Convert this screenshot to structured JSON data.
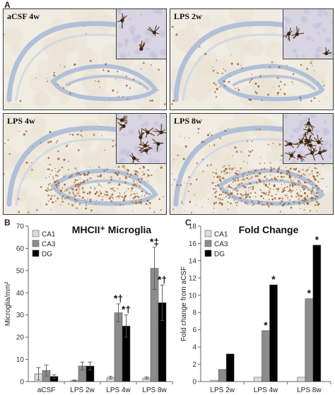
{
  "panels": {
    "a": {
      "letter": "A"
    },
    "b": {
      "letter": "B"
    },
    "c": {
      "letter": "C"
    }
  },
  "micrographs": [
    {
      "label": "aCSF 4w",
      "density": 0.05
    },
    {
      "label": "LPS 2w",
      "density": 0.12
    },
    {
      "label": "LPS 4w",
      "density": 0.7
    },
    {
      "label": "LPS 8w",
      "density": 1.0
    }
  ],
  "colors": {
    "CA1": "#dcdcdc",
    "CA3": "#8c8c8c",
    "DG": "#000000",
    "tissue": "#f1ece2",
    "hippocampus_stain": "#a9bbd9",
    "microglia_stain": "#a0602a"
  },
  "chart_data": [
    {
      "type": "bar",
      "title": "MHCII⁺ Microglia",
      "categories": [
        "aCSF",
        "LPS 2w",
        "LPS 4w",
        "LPS 8w"
      ],
      "series": [
        {
          "name": "CA1",
          "values": [
            3.5,
            0.4,
            1.8,
            1.6
          ],
          "errors": [
            2.8,
            0.3,
            0.6,
            0.5
          ]
        },
        {
          "name": "CA3",
          "values": [
            5.0,
            7.0,
            31.0,
            51.0
          ],
          "errors": [
            2.5,
            1.8,
            4.0,
            9.5
          ]
        },
        {
          "name": "DG",
          "values": [
            2.3,
            7.0,
            25.0,
            35.5
          ],
          "errors": [
            0.8,
            1.8,
            5.0,
            8.0
          ]
        }
      ],
      "annotations": [
        {
          "category": "LPS 4w",
          "series": "CA3",
          "text": "*†"
        },
        {
          "category": "LPS 4w",
          "series": "DG",
          "text": "*†"
        },
        {
          "category": "LPS 8w",
          "series": "CA3",
          "text": "*‡"
        },
        {
          "category": "LPS 8w",
          "series": "DG",
          "text": "*†"
        }
      ],
      "xlabel": "",
      "ylabel": "Microglia/mm²",
      "ylim": [
        0,
        70
      ],
      "yticks": [
        0,
        10,
        20,
        30,
        40,
        50,
        60,
        70
      ],
      "legend": "top-left",
      "grid": false
    },
    {
      "type": "bar",
      "title": "Fold Change",
      "categories": [
        "LPS 2w",
        "LPS 4w",
        "LPS 8w"
      ],
      "series": [
        {
          "name": "CA1",
          "values": [
            0.15,
            0.5,
            0.5
          ]
        },
        {
          "name": "CA3",
          "values": [
            1.4,
            5.9,
            9.6
          ]
        },
        {
          "name": "DG",
          "values": [
            3.2,
            11.2,
            15.8
          ]
        }
      ],
      "annotations": [
        {
          "category": "LPS 4w",
          "series": "CA3",
          "text": "*"
        },
        {
          "category": "LPS 4w",
          "series": "DG",
          "text": "*"
        },
        {
          "category": "LPS 8w",
          "series": "CA3",
          "text": "*"
        },
        {
          "category": "LPS 8w",
          "series": "DG",
          "text": "*"
        }
      ],
      "xlabel": "",
      "ylabel": "Fold change from aCSF",
      "ylim": [
        0,
        18
      ],
      "yticks": [
        0,
        2,
        4,
        6,
        8,
        10,
        12,
        14,
        16,
        18
      ],
      "legend": "top-left",
      "grid": false
    }
  ]
}
